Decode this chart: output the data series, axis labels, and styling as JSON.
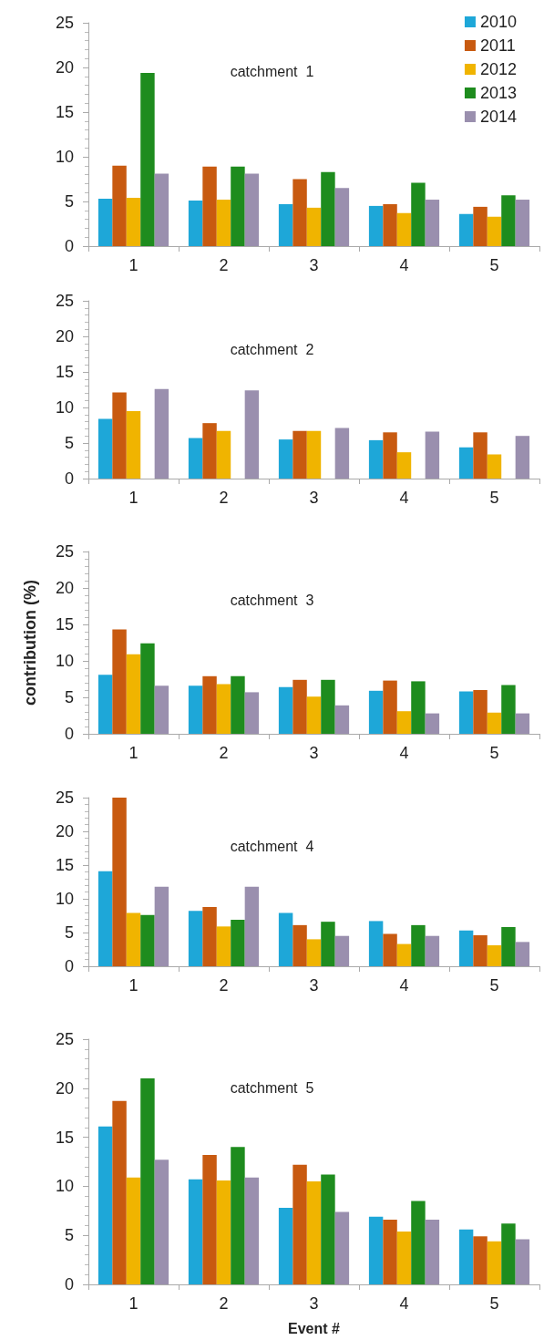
{
  "chart_data": [
    {
      "type": "bar",
      "title": "catchment  1",
      "categories": [
        "1",
        "2",
        "3",
        "4",
        "5"
      ],
      "ylim": [
        0,
        25
      ],
      "yticks": [
        0,
        5,
        10,
        15,
        20,
        25
      ],
      "legend": "top right",
      "series": [
        {
          "name": "2010",
          "color": "#1ea7d8",
          "values": [
            5.3,
            5.1,
            4.7,
            4.5,
            3.6
          ]
        },
        {
          "name": "2011",
          "color": "#c85a10",
          "values": [
            9.0,
            8.9,
            7.5,
            4.7,
            4.4
          ]
        },
        {
          "name": "2012",
          "color": "#f0b400",
          "values": [
            5.4,
            5.2,
            4.3,
            3.7,
            3.3
          ]
        },
        {
          "name": "2013",
          "color": "#1e8c1e",
          "values": [
            19.4,
            8.9,
            8.3,
            7.1,
            5.7
          ]
        },
        {
          "name": "2014",
          "color": "#9a8fae",
          "values": [
            8.1,
            8.1,
            6.5,
            5.2,
            5.2
          ]
        }
      ]
    },
    {
      "type": "bar",
      "title": "catchment  2",
      "categories": [
        "1",
        "2",
        "3",
        "4",
        "5"
      ],
      "ylim": [
        0,
        25
      ],
      "yticks": [
        0,
        5,
        10,
        15,
        20,
        25
      ],
      "series": [
        {
          "color": "#1ea7d8",
          "values": [
            8.4,
            5.7,
            5.5,
            5.4,
            4.4
          ]
        },
        {
          "color": "#c85a10",
          "values": [
            12.1,
            7.8,
            6.7,
            6.5,
            6.5
          ]
        },
        {
          "color": "#f0b400",
          "values": [
            9.5,
            6.7,
            6.7,
            3.7,
            3.4
          ]
        },
        {
          "color": "#1e8c1e",
          "values": [
            null,
            null,
            null,
            null,
            null
          ]
        },
        {
          "color": "#9a8fae",
          "values": [
            12.6,
            12.4,
            7.1,
            6.6,
            6.0
          ]
        }
      ]
    },
    {
      "type": "bar",
      "title": "catchment  3",
      "ylabel": "contribution (%)",
      "categories": [
        "1",
        "2",
        "3",
        "4",
        "5"
      ],
      "ylim": [
        0,
        25
      ],
      "yticks": [
        0,
        5,
        10,
        15,
        20,
        25
      ],
      "series": [
        {
          "color": "#1ea7d8",
          "values": [
            8.1,
            6.6,
            6.4,
            5.9,
            5.8
          ]
        },
        {
          "color": "#c85a10",
          "values": [
            14.3,
            7.9,
            7.4,
            7.3,
            6.0
          ]
        },
        {
          "color": "#f0b400",
          "values": [
            10.9,
            6.8,
            5.1,
            3.1,
            2.9
          ]
        },
        {
          "color": "#1e8c1e",
          "values": [
            12.4,
            7.9,
            7.4,
            7.2,
            6.7
          ]
        },
        {
          "color": "#9a8fae",
          "values": [
            6.6,
            5.7,
            3.9,
            2.8,
            2.8
          ]
        }
      ]
    },
    {
      "type": "bar",
      "title": "catchment  4",
      "categories": [
        "1",
        "2",
        "3",
        "4",
        "5"
      ],
      "ylim": [
        0,
        25
      ],
      "yticks": [
        0,
        5,
        10,
        15,
        20,
        25
      ],
      "series": [
        {
          "color": "#1ea7d8",
          "values": [
            14.1,
            8.2,
            7.9,
            6.7,
            5.3
          ]
        },
        {
          "color": "#c85a10",
          "values": [
            25,
            8.8,
            6.1,
            4.8,
            4.6
          ]
        },
        {
          "color": "#f0b400",
          "values": [
            7.9,
            5.9,
            4.0,
            3.3,
            3.1
          ]
        },
        {
          "color": "#1e8c1e",
          "values": [
            7.6,
            6.9,
            6.6,
            6.1,
            5.8
          ]
        },
        {
          "color": "#9a8fae",
          "values": [
            11.8,
            11.8,
            4.5,
            4.5,
            3.6
          ]
        }
      ]
    },
    {
      "type": "bar",
      "title": "catchment  5",
      "xlabel": "Event #",
      "categories": [
        "1",
        "2",
        "3",
        "4",
        "5"
      ],
      "ylim": [
        0,
        25
      ],
      "yticks": [
        0,
        5,
        10,
        15,
        20,
        25
      ],
      "series": [
        {
          "color": "#1ea7d8",
          "values": [
            16.1,
            10.7,
            7.8,
            6.9,
            5.6
          ]
        },
        {
          "color": "#c85a10",
          "values": [
            18.7,
            13.2,
            12.2,
            6.6,
            4.9
          ]
        },
        {
          "color": "#f0b400",
          "values": [
            10.9,
            10.6,
            10.5,
            5.4,
            4.4
          ]
        },
        {
          "color": "#1e8c1e",
          "values": [
            21.0,
            14.0,
            11.2,
            8.5,
            6.2
          ]
        },
        {
          "color": "#9a8fae",
          "values": [
            12.7,
            10.9,
            7.4,
            6.6,
            4.6
          ]
        }
      ]
    }
  ]
}
